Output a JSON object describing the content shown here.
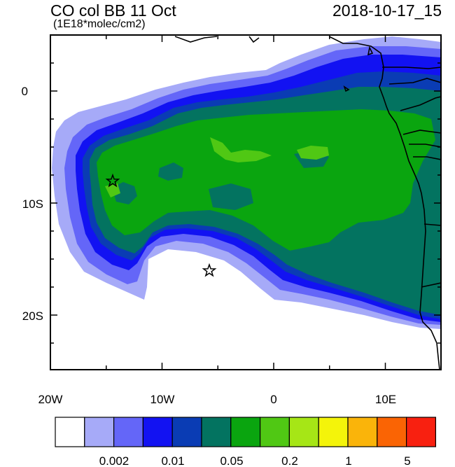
{
  "header": {
    "title": "CO col BB 11 Oct",
    "subtitle": "(1E18*molec/cm2)",
    "datetime": "2018-10-17_15"
  },
  "axes": {
    "lon_labels": [
      "20W",
      "10W",
      "0",
      "10E"
    ],
    "lat_labels": [
      "0",
      "10S",
      "20S"
    ]
  },
  "colorbar": {
    "colors": [
      "#ffffff",
      "#a6aaf8",
      "#6466f8",
      "#1212f2",
      "#0a3cb4",
      "#037360",
      "#0aa50f",
      "#50c814",
      "#a6e616",
      "#f4f40a",
      "#fab40a",
      "#fa6404",
      "#f82010"
    ],
    "labels": [
      "0.002",
      "0.01",
      "0.05",
      "0.2",
      "1",
      "5"
    ]
  },
  "markers": {
    "icon": "star-icon"
  }
}
